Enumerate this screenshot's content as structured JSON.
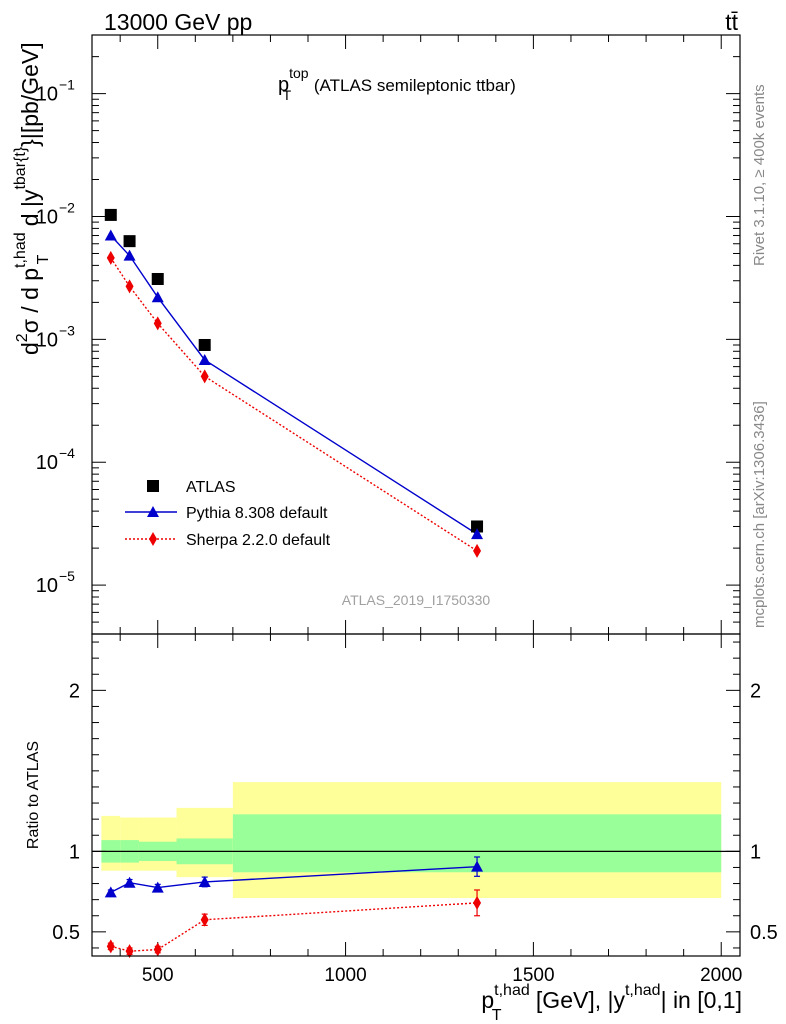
{
  "header": {
    "energy_label": "13000 GeV pp",
    "process_label": "tt̄",
    "side_rivet": "Rivet 3.1.10, ≥ 400k events",
    "side_mcplots": "mcplots.cern.ch [arXiv:1306.3436]",
    "analysis_id": "ATLAS_2019_I1750330"
  },
  "main_title": {
    "base": "p",
    "sup": "top",
    "sub": "T",
    "rest": " (ATLAS semileptonic ttbar)"
  },
  "ylabel_main": {
    "p1": "d",
    "p1sup": "2",
    "p2": "σ / d p",
    "p2sup": "t,had",
    "p2sub": "T",
    "p3": " d |y",
    "p3sup": "tbar{t}",
    "p4": "}|[pb/GeV]"
  },
  "ylabel_ratio": "Ratio to ATLAS",
  "xlabel": {
    "p1": "p",
    "p1sup": "t,had",
    "p1sub": "T",
    "p2": " [GeV], |y",
    "p2sup": "t,had",
    "p3": "| in [0,1]"
  },
  "legend": {
    "data": "ATLAS",
    "pythia": "Pythia 8.308 default",
    "sherpa": "Sherpa 2.2.0 default"
  },
  "colors": {
    "data": "#000000",
    "pythia": "#0000cc",
    "sherpa": "#ee0000",
    "band_inner": "#99ff99",
    "band_outer": "#ffff99"
  },
  "chart_data": {
    "type": "scatter",
    "x": [
      375,
      425,
      500,
      625,
      1350
    ],
    "xlim": [
      325,
      2050
    ],
    "main": {
      "yscale": "log",
      "ylim": [
        4e-06,
        0.3
      ],
      "y_ticks": [
        {
          "v": 1e-05,
          "m": "10",
          "e": "−5"
        },
        {
          "v": 0.0001,
          "m": "10",
          "e": "−4"
        },
        {
          "v": 0.001,
          "m": "10",
          "e": "−3"
        },
        {
          "v": 0.01,
          "m": "10",
          "e": "−2"
        },
        {
          "v": 0.1,
          "m": "10",
          "e": "−1"
        }
      ],
      "series": [
        {
          "name": "ATLAS",
          "marker": "square",
          "values": [
            0.0103,
            0.0063,
            0.0031,
            0.0009,
            3e-05
          ]
        },
        {
          "name": "Pythia 8.308 default",
          "marker": "triangle",
          "values": [
            0.007,
            0.0048,
            0.0022,
            0.00068,
            2.6e-05
          ]
        },
        {
          "name": "Sherpa 2.2.0 default",
          "marker": "diamond",
          "values": [
            0.0046,
            0.0027,
            0.00135,
            0.0005,
            1.9e-05
          ]
        }
      ]
    },
    "ratio": {
      "ylim": [
        0.35,
        2.35
      ],
      "y_ticks": [
        0.5,
        1,
        2
      ],
      "y_tick_labels": [
        "0.5",
        "1",
        "2"
      ],
      "x_ticks": [
        500,
        1000,
        1500,
        2000
      ],
      "x_tick_labels": [
        "500",
        "1000",
        "1500",
        "2000"
      ],
      "bins": [
        [
          350,
          400
        ],
        [
          400,
          450
        ],
        [
          450,
          550
        ],
        [
          550,
          700
        ],
        [
          700,
          2000
        ]
      ],
      "band_inner": [
        [
          0.93,
          1.07
        ],
        [
          0.93,
          1.07
        ],
        [
          0.94,
          1.06
        ],
        [
          0.92,
          1.08
        ],
        [
          0.87,
          1.23
        ]
      ],
      "band_outer": [
        [
          0.88,
          1.22
        ],
        [
          0.88,
          1.21
        ],
        [
          0.88,
          1.21
        ],
        [
          0.84,
          1.27
        ],
        [
          0.71,
          1.43
        ]
      ],
      "series": [
        {
          "name": "Pythia 8.308 default",
          "values": [
            0.745,
            0.805,
            0.775,
            0.81,
            0.905
          ],
          "errors": [
            0.015,
            0.02,
            0.02,
            0.03,
            0.06
          ]
        },
        {
          "name": "Sherpa 2.2.0 default",
          "values": [
            0.41,
            0.38,
            0.39,
            0.575,
            0.68
          ],
          "errors": [
            0.02,
            0.02,
            0.02,
            0.035,
            0.08
          ]
        }
      ]
    }
  }
}
